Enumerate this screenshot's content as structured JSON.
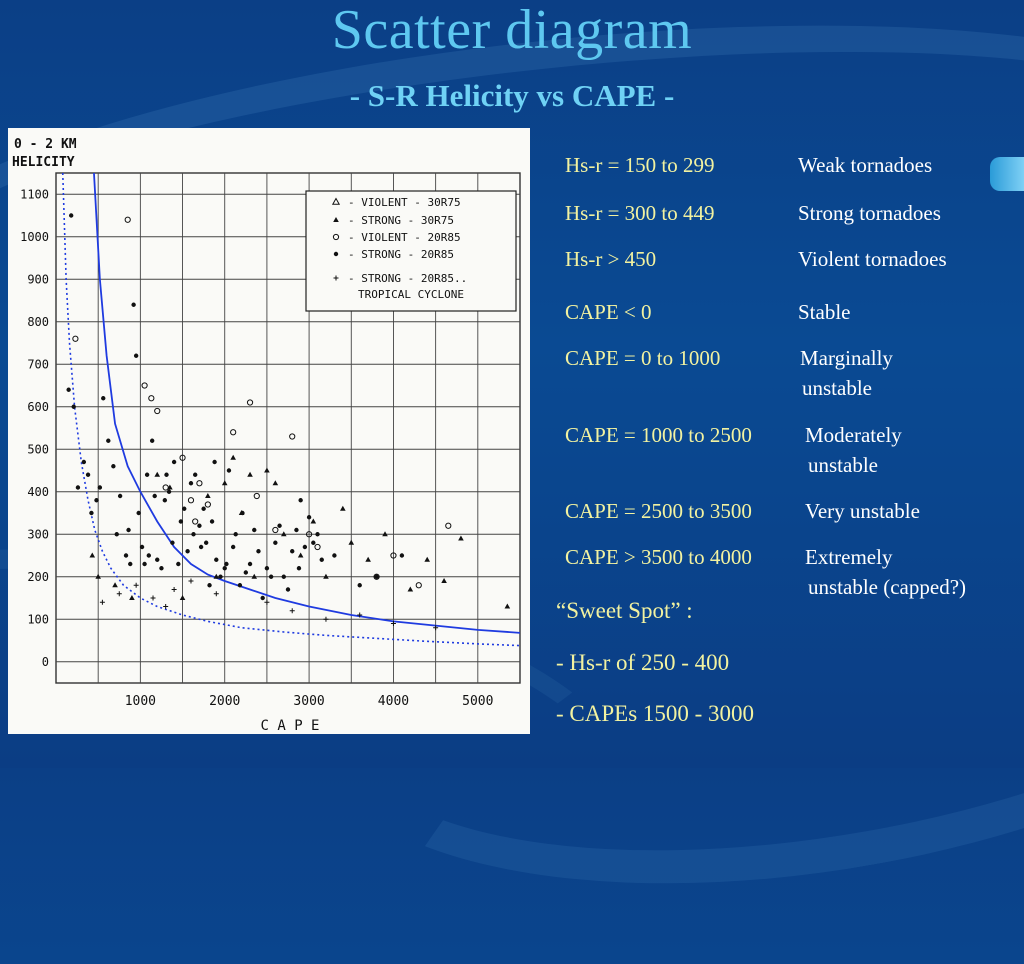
{
  "slide": {
    "title": "Scatter diagram",
    "subtitle": "- S-R Helicity vs CAPE  -"
  },
  "classes": [
    {
      "range": "Hs-r = 150 to 299",
      "label": "Weak tornadoes"
    },
    {
      "range": "Hs-r = 300 to 449",
      "label": "Strong tornadoes"
    },
    {
      "range": "Hs-r > 450",
      "label": "Violent tornadoes"
    },
    {
      "range": "CAPE < 0",
      "label": "Stable"
    },
    {
      "range": "CAPE = 0 to 1000",
      "label": "Marginally",
      "label2": "unstable"
    },
    {
      "range": "CAPE = 1000 to 2500",
      "label": "Moderately",
      "label2": "unstable"
    },
    {
      "range": "CAPE = 2500 to 3500",
      "label": "Very unstable"
    },
    {
      "range": "CAPE > 3500 to 4000",
      "label": "Extremely",
      "label2": "unstable (capped?)"
    }
  ],
  "sweet_spot": {
    "heading": "“Sweet Spot” :",
    "line1": "- Hs-r of 250 - 400",
    "line2": "- CAPEs 1500 - 3000"
  },
  "chart_data": {
    "type": "scatter",
    "ylabel_line1": "0 - 2 KM",
    "ylabel_line2": "HELICITY",
    "xlabel": "C A P E",
    "xlim": [
      0,
      5500
    ],
    "ylim": [
      -50,
      1150
    ],
    "xticks": [
      1000,
      2000,
      3000,
      4000,
      5000
    ],
    "yticks": [
      0,
      100,
      200,
      300,
      400,
      500,
      600,
      700,
      800,
      900,
      1000,
      1100
    ],
    "grid": true,
    "legend_position": "top-right",
    "legend": [
      {
        "symbol": "triangle-open",
        "label": "- VIOLENT - 30R75"
      },
      {
        "symbol": "triangle",
        "label": "- STRONG  - 30R75"
      },
      {
        "symbol": "circle-open",
        "label": "- VIOLENT - 20R85"
      },
      {
        "symbol": "dot",
        "label": "- STRONG  - 20R85"
      },
      {
        "symbol": "plus",
        "label": "- STRONG  - 20R85.."
      },
      {
        "symbol": "none",
        "label": "TROPICAL CYCLONE"
      }
    ],
    "series": [
      {
        "marker": "dot",
        "x": [
          150,
          180,
          210,
          260,
          330,
          380,
          420,
          480,
          520,
          560,
          620,
          680,
          720,
          760,
          830,
          860,
          880,
          920,
          950,
          980,
          1020,
          1050,
          1080,
          1100,
          1140,
          1170,
          1200,
          1250,
          1290,
          1310,
          1340,
          1380,
          1400,
          1450,
          1480,
          1520,
          1560,
          1600,
          1630,
          1650,
          1700,
          1720,
          1750,
          1780,
          1820,
          1850,
          1880,
          1900,
          1950,
          2000,
          2020,
          2050,
          2100,
          2130,
          2180,
          2210,
          2250,
          2300,
          2350,
          2400,
          2450,
          2500,
          2550,
          2600,
          2650,
          2700,
          2750,
          2800,
          2850,
          2880,
          2900,
          2950,
          3000,
          3050,
          3100,
          3150,
          3300,
          3600,
          3800,
          4100
        ],
        "y": [
          640,
          1050,
          600,
          410,
          470,
          440,
          350,
          380,
          410,
          620,
          520,
          460,
          300,
          390,
          250,
          310,
          230,
          840,
          720,
          350,
          270,
          230,
          440,
          250,
          520,
          390,
          240,
          220,
          380,
          440,
          400,
          280,
          470,
          230,
          330,
          360,
          260,
          420,
          300,
          440,
          320,
          270,
          360,
          280,
          180,
          330,
          470,
          240,
          200,
          220,
          230,
          450,
          270,
          300,
          180,
          350,
          210,
          230,
          310,
          260,
          150,
          220,
          200,
          280,
          320,
          200,
          170,
          260,
          310,
          220,
          380,
          270,
          340,
          280,
          300,
          240,
          250,
          180,
          200,
          250
        ]
      },
      {
        "marker": "triangle",
        "x": [
          430,
          500,
          700,
          900,
          1200,
          1350,
          1500,
          1800,
          1900,
          2000,
          2100,
          2200,
          2300,
          2350,
          2500,
          2600,
          2700,
          2900,
          3050,
          3200,
          3400,
          3500,
          3700,
          3900,
          4200,
          4400,
          4600,
          4800,
          5350
        ],
        "y": [
          250,
          200,
          180,
          150,
          440,
          410,
          150,
          390,
          200,
          420,
          480,
          350,
          440,
          200,
          450,
          420,
          300,
          250,
          330,
          200,
          360,
          280,
          240,
          300,
          170,
          240,
          190,
          290,
          130
        ]
      },
      {
        "marker": "circle-open",
        "x": [
          230,
          850,
          1050,
          1130,
          1200,
          1300,
          1500,
          1600,
          1650,
          1700,
          1800,
          2100,
          2300,
          2380,
          2600,
          2800,
          3000,
          3100,
          3800,
          4000,
          4300,
          4650
        ],
        "y": [
          760,
          1040,
          650,
          620,
          590,
          410,
          480,
          380,
          330,
          420,
          370,
          540,
          610,
          390,
          310,
          530,
          300,
          270,
          200,
          250,
          180,
          320
        ]
      },
      {
        "marker": "plus",
        "x": [
          550,
          750,
          950,
          1150,
          1300,
          1400,
          1600,
          1900,
          2500,
          2800,
          3200,
          3600,
          4000,
          4500
        ],
        "y": [
          140,
          160,
          180,
          150,
          130,
          170,
          190,
          160,
          140,
          120,
          100,
          110,
          90,
          80
        ]
      }
    ],
    "curves": [
      {
        "name": "solid",
        "x": [
          450,
          520,
          600,
          700,
          850,
          1000,
          1200,
          1400,
          1600,
          1800,
          2000,
          2300,
          2600,
          3000,
          3500,
          4000,
          4500,
          5000,
          5500
        ],
        "y": [
          1150,
          900,
          720,
          560,
          460,
          400,
          330,
          270,
          230,
          205,
          190,
          170,
          150,
          130,
          110,
          95,
          85,
          75,
          68
        ]
      },
      {
        "name": "dotted",
        "x": [
          80,
          120,
          160,
          220,
          300,
          380,
          460,
          550,
          650,
          800,
          1000,
          1200,
          1500,
          1800,
          2200,
          2700,
          3200,
          3800,
          4400,
          5000,
          5500
        ],
        "y": [
          1150,
          900,
          750,
          600,
          470,
          380,
          310,
          260,
          220,
          180,
          150,
          130,
          110,
          95,
          80,
          70,
          62,
          55,
          48,
          42,
          38
        ]
      }
    ]
  }
}
